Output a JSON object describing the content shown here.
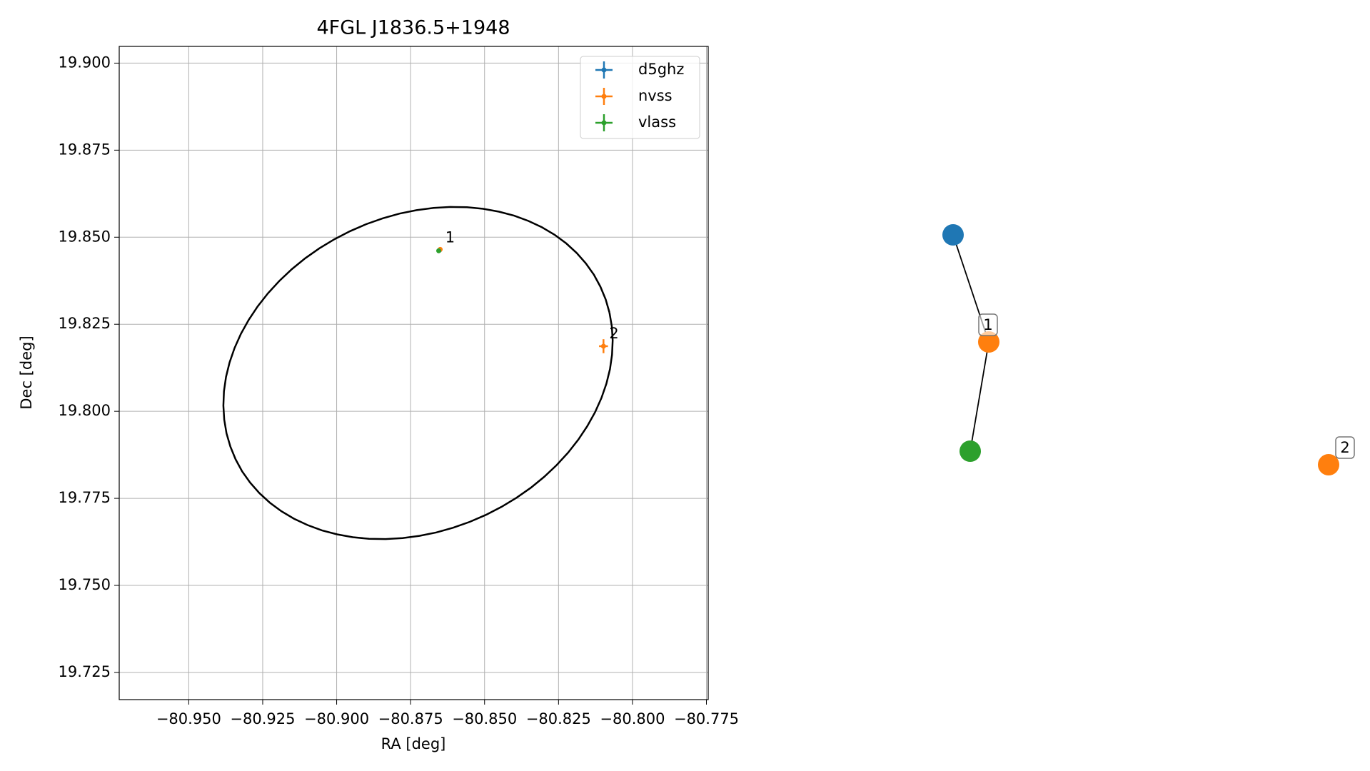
{
  "chart_data": {
    "type": "scatter",
    "title": "4FGL J1836.5+1948",
    "xlabel": "RA [deg]",
    "ylabel": "Dec [deg]",
    "xlim": [
      -80.9735,
      -80.7744
    ],
    "ylim": [
      19.7172,
      19.9048
    ],
    "xticks": [
      {
        "value": -80.95,
        "label": "−80.950"
      },
      {
        "value": -80.925,
        "label": "−80.925"
      },
      {
        "value": -80.9,
        "label": "−80.900"
      },
      {
        "value": -80.875,
        "label": "−80.875"
      },
      {
        "value": -80.85,
        "label": "−80.850"
      },
      {
        "value": -80.825,
        "label": "−80.825"
      },
      {
        "value": -80.8,
        "label": "−80.800"
      },
      {
        "value": -80.775,
        "label": "−80.775"
      }
    ],
    "yticks": [
      {
        "value": 19.725,
        "label": "19.725"
      },
      {
        "value": 19.75,
        "label": "19.750"
      },
      {
        "value": 19.775,
        "label": "19.775"
      },
      {
        "value": 19.8,
        "label": "19.800"
      },
      {
        "value": 19.825,
        "label": "19.825"
      },
      {
        "value": 19.85,
        "label": "19.850"
      },
      {
        "value": 19.875,
        "label": "19.875"
      },
      {
        "value": 19.9,
        "label": "19.900"
      }
    ],
    "grid": true,
    "legend": "upper right",
    "series": [
      {
        "name": "d5ghz",
        "color": "#1f77b4",
        "x": [
          -80.8652
        ],
        "values": [
          19.8463
        ],
        "xerr": [
          0.0003
        ],
        "yerr": [
          0.0003
        ]
      },
      {
        "name": "nvss",
        "color": "#ff7f0e",
        "x": [
          -80.865,
          -80.8098
        ],
        "values": [
          19.8465,
          19.8187
        ],
        "xerr": [
          0.0005,
          0.0015
        ],
        "yerr": [
          0.0005,
          0.002
        ]
      },
      {
        "name": "vlass",
        "color": "#2ca02c",
        "x": [
          -80.8655
        ],
        "values": [
          19.8461
        ],
        "xerr": [
          0.0002
        ],
        "yerr": [
          0.0002
        ]
      }
    ],
    "annotations": [
      {
        "text": "1",
        "x": -80.8652,
        "y": 19.8463
      },
      {
        "text": "2",
        "x": -80.8098,
        "y": 19.8187
      }
    ],
    "ellipse": {
      "center": [
        -80.8725,
        19.811
      ],
      "semi_major": 0.067,
      "semi_minor": 0.046,
      "angle": 15
    }
  },
  "graph": {
    "nodes": [
      {
        "color": "#1f77b4"
      },
      {
        "color": "#ff7f0e",
        "label": "1"
      },
      {
        "color": "#2ca02c"
      },
      {
        "color": "#ff7f0e",
        "label": "2"
      }
    ],
    "edges": [
      [
        0,
        1
      ],
      [
        1,
        2
      ]
    ]
  }
}
